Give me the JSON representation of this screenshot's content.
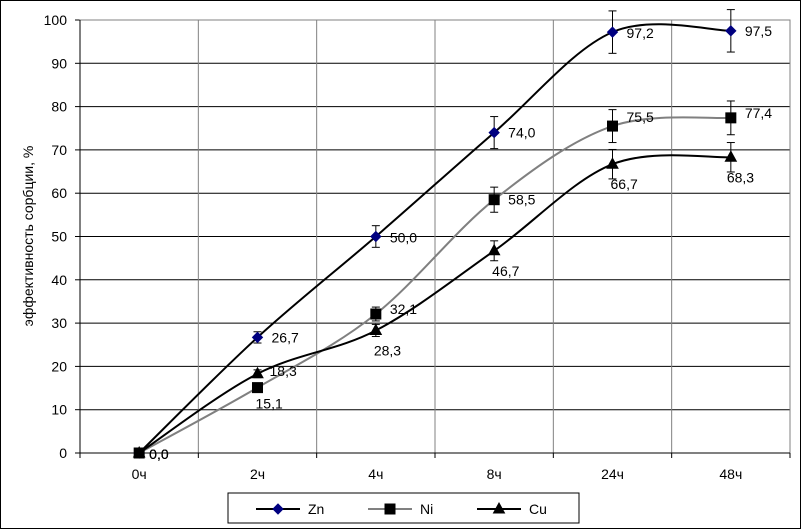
{
  "chart_data": {
    "type": "line",
    "ylabel": "эффективность сорбции, %",
    "xlabel": "",
    "categories": [
      "0ч",
      "2ч",
      "4ч",
      "8ч",
      "24ч",
      "48ч"
    ],
    "ylim": [
      0,
      100
    ],
    "yticks": [
      0,
      10,
      20,
      30,
      40,
      50,
      60,
      70,
      80,
      90,
      100
    ],
    "grid": true,
    "legend_position": "bottom",
    "series": [
      {
        "name": "Zn",
        "marker": "diamond",
        "color": "#000080",
        "line_color": "#000000",
        "values": [
          0,
          26.7,
          50.0,
          74.0,
          97.2,
          97.5
        ],
        "labels": [
          "0,0",
          "26,7",
          "50,0",
          "74,0",
          "97,2",
          "97,5"
        ],
        "errors": [
          0,
          1.3,
          2.5,
          3.7,
          4.9,
          4.9
        ]
      },
      {
        "name": "Ni",
        "marker": "square",
        "color": "#000000",
        "line_color": "#808080",
        "values": [
          0,
          15.1,
          32.1,
          58.5,
          75.5,
          77.4
        ],
        "labels": [
          "0,0",
          "15,1",
          "32,1",
          "58,5",
          "75,5",
          "77,4"
        ],
        "errors": [
          0,
          0.8,
          1.6,
          2.9,
          3.8,
          3.9
        ]
      },
      {
        "name": "Cu",
        "marker": "triangle",
        "color": "#000000",
        "line_color": "#000000",
        "values": [
          0,
          18.3,
          28.3,
          46.7,
          66.7,
          68.3
        ],
        "labels": [
          "0,0",
          "18,3",
          "28,3",
          "46,7",
          "66,7",
          "68,3"
        ],
        "errors": [
          0,
          0.9,
          1.4,
          2.3,
          3.4,
          3.4
        ]
      }
    ]
  }
}
